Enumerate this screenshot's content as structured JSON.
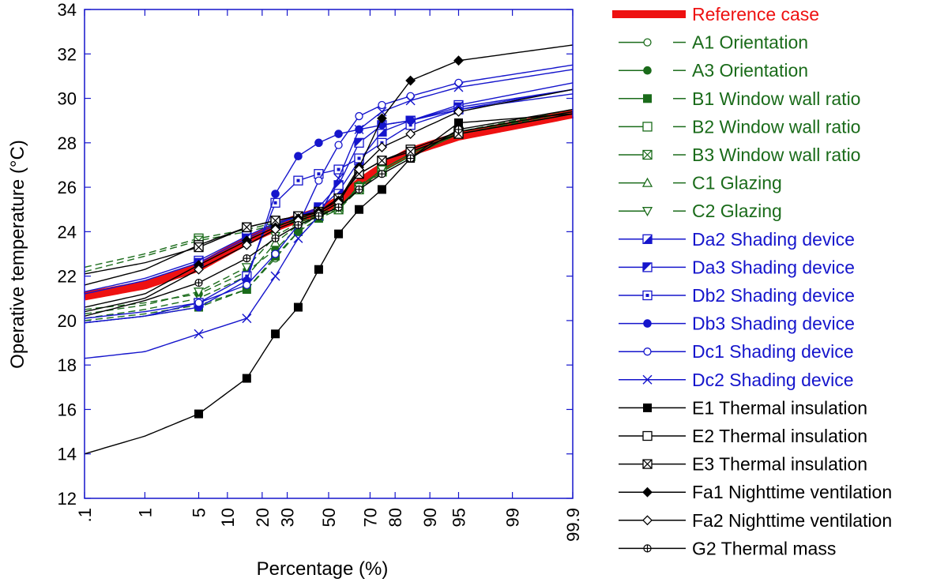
{
  "chart_data": {
    "type": "line",
    "title": "",
    "xlabel": "Percentage (%)",
    "ylabel": "Operative temperature (°C)",
    "x_scale": "normal-probability",
    "ylim": [
      12,
      34
    ],
    "x_ticks": [
      ".1",
      "1",
      "5",
      "10",
      "20",
      "30",
      "50",
      "70",
      "80",
      "90",
      "95",
      "99",
      "99.9"
    ],
    "y_ticks": [
      "12",
      "14",
      "16",
      "18",
      "20",
      "22",
      "24",
      "26",
      "28",
      "30",
      "32",
      "34"
    ],
    "marker_x": [
      5,
      15,
      25,
      35,
      45,
      55,
      65,
      75,
      85,
      95
    ],
    "series": [
      {
        "name": "Reference case",
        "color": "#ee1111",
        "marker": "none",
        "dash": false,
        "thick": true,
        "points": [
          [
            0.1,
            21.1
          ],
          [
            1,
            21.6
          ],
          [
            5,
            22.4
          ],
          [
            15,
            23.6
          ],
          [
            25,
            24.2
          ],
          [
            35,
            24.6
          ],
          [
            45,
            24.9
          ],
          [
            55,
            25.4
          ],
          [
            65,
            26.2
          ],
          [
            75,
            26.9
          ],
          [
            85,
            27.6
          ],
          [
            95,
            28.3
          ],
          [
            99.9,
            29.3
          ]
        ]
      },
      {
        "name": "A1 Orientation",
        "color": "#1a6b1a",
        "marker": "circle-open",
        "dash": true,
        "points": [
          [
            0.1,
            20.0
          ],
          [
            1,
            20.3
          ],
          [
            5,
            20.7
          ],
          [
            15,
            21.4
          ],
          [
            25,
            22.8
          ],
          [
            35,
            24.0
          ],
          [
            45,
            24.6
          ],
          [
            55,
            25.0
          ],
          [
            65,
            26.1
          ],
          [
            75,
            26.7
          ],
          [
            85,
            27.4
          ],
          [
            95,
            28.4
          ],
          [
            99.9,
            29.4
          ]
        ]
      },
      {
        "name": "A3 Orientation",
        "color": "#1a6b1a",
        "marker": "circle-filled",
        "dash": true,
        "points": [
          [
            0.1,
            20.5
          ],
          [
            1,
            20.8
          ],
          [
            5,
            21.2
          ],
          [
            15,
            22.2
          ],
          [
            25,
            23.2
          ],
          [
            35,
            24.2
          ],
          [
            45,
            24.7
          ],
          [
            55,
            25.1
          ],
          [
            65,
            26.0
          ],
          [
            75,
            26.8
          ],
          [
            85,
            27.5
          ],
          [
            95,
            28.5
          ],
          [
            99.9,
            29.5
          ]
        ]
      },
      {
        "name": "B1 Window wall ratio",
        "color": "#1a6b1a",
        "marker": "square-filled",
        "dash": true,
        "points": [
          [
            0.1,
            19.9
          ],
          [
            1,
            20.2
          ],
          [
            5,
            20.6
          ],
          [
            15,
            21.4
          ],
          [
            25,
            22.9
          ],
          [
            35,
            24.0
          ],
          [
            45,
            24.6
          ],
          [
            55,
            25.0
          ],
          [
            65,
            26.0
          ],
          [
            75,
            26.7
          ],
          [
            85,
            27.4
          ],
          [
            95,
            28.4
          ],
          [
            99.9,
            29.3
          ]
        ]
      },
      {
        "name": "B2 Window wall ratio",
        "color": "#1a6b1a",
        "marker": "square-open",
        "dash": true,
        "points": [
          [
            0.1,
            22.4
          ],
          [
            1,
            23.0
          ],
          [
            5,
            23.7
          ],
          [
            15,
            24.1
          ],
          [
            25,
            24.4
          ],
          [
            35,
            24.6
          ],
          [
            45,
            24.8
          ],
          [
            55,
            25.1
          ],
          [
            65,
            26.0
          ],
          [
            75,
            26.8
          ],
          [
            85,
            27.5
          ],
          [
            95,
            28.5
          ],
          [
            99.9,
            29.4
          ]
        ]
      },
      {
        "name": "B3 Window wall ratio",
        "color": "#1a6b1a",
        "marker": "square-x",
        "dash": true,
        "points": [
          [
            0.1,
            22.2
          ],
          [
            1,
            22.9
          ],
          [
            5,
            23.6
          ],
          [
            15,
            24.0
          ],
          [
            25,
            24.3
          ],
          [
            35,
            24.5
          ],
          [
            45,
            24.7
          ],
          [
            55,
            25.0
          ],
          [
            65,
            25.9
          ],
          [
            75,
            26.7
          ],
          [
            85,
            27.4
          ],
          [
            95,
            28.4
          ],
          [
            99.9,
            29.3
          ]
        ]
      },
      {
        "name": "C1 Glazing",
        "color": "#1a6b1a",
        "marker": "triangle-up",
        "dash": true,
        "points": [
          [
            0.1,
            20.1
          ],
          [
            1,
            20.5
          ],
          [
            5,
            21.0
          ],
          [
            15,
            22.0
          ],
          [
            25,
            23.5
          ],
          [
            35,
            24.3
          ],
          [
            45,
            24.7
          ],
          [
            55,
            25.1
          ],
          [
            65,
            26.0
          ],
          [
            75,
            26.8
          ],
          [
            85,
            27.5
          ],
          [
            95,
            28.5
          ],
          [
            99.9,
            29.4
          ]
        ]
      },
      {
        "name": "C2 Glazing",
        "color": "#1a6b1a",
        "marker": "triangle-down",
        "dash": true,
        "points": [
          [
            0.1,
            20.3
          ],
          [
            1,
            20.7
          ],
          [
            5,
            21.3
          ],
          [
            15,
            22.4
          ],
          [
            25,
            23.8
          ],
          [
            35,
            24.4
          ],
          [
            45,
            24.7
          ],
          [
            55,
            25.1
          ],
          [
            65,
            26.0
          ],
          [
            75,
            26.8
          ],
          [
            85,
            27.5
          ],
          [
            95,
            28.5
          ],
          [
            99.9,
            29.4
          ]
        ]
      },
      {
        "name": "Da2 Shading device",
        "color": "#1515cc",
        "marker": "square-half",
        "dash": false,
        "points": [
          [
            0.1,
            21.3
          ],
          [
            1,
            21.9
          ],
          [
            5,
            22.7
          ],
          [
            15,
            23.8
          ],
          [
            25,
            24.4
          ],
          [
            35,
            24.7
          ],
          [
            45,
            25.0
          ],
          [
            55,
            25.8
          ],
          [
            65,
            27.2
          ],
          [
            75,
            28.5
          ],
          [
            85,
            29.0
          ],
          [
            95,
            29.7
          ],
          [
            99.9,
            30.7
          ]
        ]
      },
      {
        "name": "Da3 Shading device",
        "color": "#1515cc",
        "marker": "square-half2",
        "dash": false,
        "points": [
          [
            0.1,
            21.2
          ],
          [
            1,
            21.8
          ],
          [
            5,
            22.6
          ],
          [
            15,
            23.7
          ],
          [
            25,
            24.3
          ],
          [
            35,
            24.7
          ],
          [
            45,
            25.1
          ],
          [
            55,
            26.1
          ],
          [
            65,
            28.0
          ],
          [
            75,
            28.8
          ],
          [
            85,
            29.0
          ],
          [
            95,
            29.6
          ],
          [
            99.9,
            30.4
          ]
        ]
      },
      {
        "name": "Db2 Shading device",
        "color": "#1515cc",
        "marker": "square-dot",
        "dash": false,
        "points": [
          [
            0.1,
            19.9
          ],
          [
            1,
            20.2
          ],
          [
            5,
            20.8
          ],
          [
            15,
            22.0
          ],
          [
            25,
            25.3
          ],
          [
            35,
            26.3
          ],
          [
            45,
            26.6
          ],
          [
            55,
            26.8
          ],
          [
            65,
            27.3
          ],
          [
            75,
            28.0
          ],
          [
            85,
            28.8
          ],
          [
            95,
            29.5
          ],
          [
            99.9,
            30.4
          ]
        ]
      },
      {
        "name": "Db3 Shading device",
        "color": "#1515cc",
        "marker": "circle-filled",
        "dash": false,
        "points": [
          [
            0.1,
            19.9
          ],
          [
            1,
            20.2
          ],
          [
            5,
            20.6
          ],
          [
            15,
            21.8
          ],
          [
            25,
            25.7
          ],
          [
            35,
            27.4
          ],
          [
            45,
            28.0
          ],
          [
            55,
            28.4
          ],
          [
            65,
            28.6
          ],
          [
            75,
            28.8
          ],
          [
            85,
            29.0
          ],
          [
            95,
            29.5
          ],
          [
            99.9,
            30.2
          ]
        ]
      },
      {
        "name": "Dc1 Shading device",
        "color": "#1515cc",
        "marker": "circle-open",
        "dash": false,
        "points": [
          [
            0.1,
            20.1
          ],
          [
            1,
            20.4
          ],
          [
            5,
            20.8
          ],
          [
            15,
            21.6
          ],
          [
            25,
            23.0
          ],
          [
            35,
            24.3
          ],
          [
            45,
            26.3
          ],
          [
            55,
            27.9
          ],
          [
            65,
            29.2
          ],
          [
            75,
            29.7
          ],
          [
            85,
            30.1
          ],
          [
            95,
            30.7
          ],
          [
            99.9,
            31.5
          ]
        ]
      },
      {
        "name": "Dc2 Shading device",
        "color": "#1515cc",
        "marker": "x",
        "dash": false,
        "points": [
          [
            0.1,
            18.3
          ],
          [
            1,
            18.6
          ],
          [
            5,
            19.4
          ],
          [
            15,
            20.1
          ],
          [
            25,
            22.0
          ],
          [
            35,
            23.7
          ],
          [
            45,
            24.7
          ],
          [
            55,
            26.4
          ],
          [
            65,
            28.6
          ],
          [
            75,
            29.4
          ],
          [
            85,
            29.9
          ],
          [
            95,
            30.5
          ],
          [
            99.9,
            31.3
          ]
        ]
      },
      {
        "name": "E1 Thermal insulation",
        "color": "#000000",
        "marker": "square-filled",
        "dash": false,
        "points": [
          [
            0.1,
            14.0
          ],
          [
            1,
            14.8
          ],
          [
            5,
            15.8
          ],
          [
            15,
            17.4
          ],
          [
            25,
            19.4
          ],
          [
            35,
            20.6
          ],
          [
            45,
            22.3
          ],
          [
            55,
            23.9
          ],
          [
            65,
            25.0
          ],
          [
            75,
            25.9
          ],
          [
            85,
            27.3
          ],
          [
            95,
            28.9
          ],
          [
            99.9,
            29.3
          ]
        ]
      },
      {
        "name": "E2 Thermal insulation",
        "color": "#000000",
        "marker": "square-open",
        "dash": false,
        "points": [
          [
            0.1,
            21.6
          ],
          [
            1,
            22.3
          ],
          [
            5,
            23.4
          ],
          [
            15,
            24.2
          ],
          [
            25,
            24.5
          ],
          [
            35,
            24.7
          ],
          [
            45,
            24.9
          ],
          [
            55,
            25.5
          ],
          [
            65,
            26.6
          ],
          [
            75,
            27.2
          ],
          [
            85,
            27.7
          ],
          [
            95,
            28.5
          ],
          [
            99.9,
            29.4
          ]
        ]
      },
      {
        "name": "E3 Thermal insulation",
        "color": "#000000",
        "marker": "square-x",
        "dash": false,
        "points": [
          [
            0.1,
            22.1
          ],
          [
            1,
            22.6
          ],
          [
            5,
            23.3
          ],
          [
            15,
            24.2
          ],
          [
            25,
            24.5
          ],
          [
            35,
            24.7
          ],
          [
            45,
            24.9
          ],
          [
            55,
            25.5
          ],
          [
            65,
            26.6
          ],
          [
            75,
            27.2
          ],
          [
            85,
            27.6
          ],
          [
            95,
            28.4
          ],
          [
            99.9,
            29.3
          ]
        ]
      },
      {
        "name": "Fa1 Nighttime ventilation",
        "color": "#000000",
        "marker": "diamond-filled",
        "dash": false,
        "points": [
          [
            0.1,
            20.6
          ],
          [
            1,
            21.2
          ],
          [
            5,
            22.5
          ],
          [
            15,
            23.6
          ],
          [
            25,
            24.2
          ],
          [
            35,
            24.6
          ],
          [
            45,
            24.9
          ],
          [
            55,
            25.4
          ],
          [
            65,
            26.9
          ],
          [
            75,
            29.1
          ],
          [
            85,
            30.8
          ],
          [
            95,
            31.7
          ],
          [
            99.9,
            32.4
          ]
        ]
      },
      {
        "name": "Fa2 Nighttime ventilation",
        "color": "#000000",
        "marker": "diamond-open",
        "dash": false,
        "points": [
          [
            0.1,
            20.4
          ],
          [
            1,
            21.0
          ],
          [
            5,
            22.3
          ],
          [
            15,
            23.4
          ],
          [
            25,
            24.1
          ],
          [
            35,
            24.5
          ],
          [
            45,
            24.8
          ],
          [
            55,
            25.3
          ],
          [
            65,
            26.8
          ],
          [
            75,
            27.8
          ],
          [
            85,
            28.4
          ],
          [
            95,
            29.4
          ],
          [
            99.9,
            30.4
          ]
        ]
      },
      {
        "name": "G2 Thermal mass",
        "color": "#000000",
        "marker": "cross-circle",
        "dash": false,
        "points": [
          [
            0.1,
            20.2
          ],
          [
            1,
            20.9
          ],
          [
            5,
            21.7
          ],
          [
            15,
            22.8
          ],
          [
            25,
            23.7
          ],
          [
            35,
            24.3
          ],
          [
            45,
            24.7
          ],
          [
            55,
            25.1
          ],
          [
            65,
            25.9
          ],
          [
            75,
            26.6
          ],
          [
            85,
            27.3
          ],
          [
            95,
            28.6
          ],
          [
            99.9,
            29.5
          ]
        ]
      }
    ]
  }
}
